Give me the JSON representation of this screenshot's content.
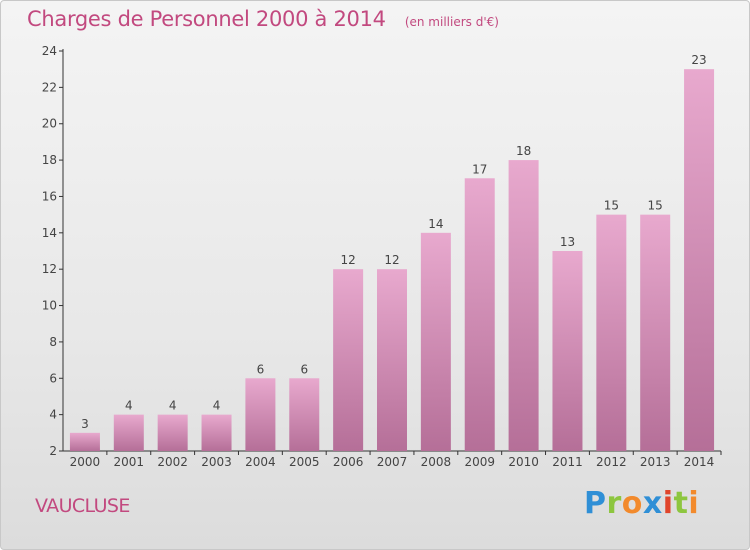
{
  "header": {
    "title": "Charges de Personnel 2000 à 2014",
    "subtitle": "(en milliers d'€)"
  },
  "footer": {
    "region": "VAUCLUSE",
    "logo_letters": [
      "P",
      "r",
      "o",
      "x",
      "i",
      "t",
      "i"
    ]
  },
  "colors": {
    "bar_top": "#e8a9ce",
    "bar_bottom": "#b56f98",
    "text_accent": "#c2497f"
  },
  "chart_data": {
    "type": "bar",
    "categories": [
      "2000",
      "2001",
      "2002",
      "2003",
      "2004",
      "2005",
      "2006",
      "2007",
      "2008",
      "2009",
      "2010",
      "2011",
      "2012",
      "2013",
      "2014"
    ],
    "values": [
      3,
      4,
      4,
      4,
      6,
      6,
      12,
      12,
      14,
      17,
      18,
      13,
      15,
      15,
      23
    ],
    "title": "Charges de Personnel 2000 à 2014",
    "ylim": [
      2,
      24
    ],
    "yticks": [
      2,
      4,
      6,
      8,
      10,
      12,
      14,
      16,
      18,
      20,
      22,
      24
    ],
    "grid": false
  }
}
